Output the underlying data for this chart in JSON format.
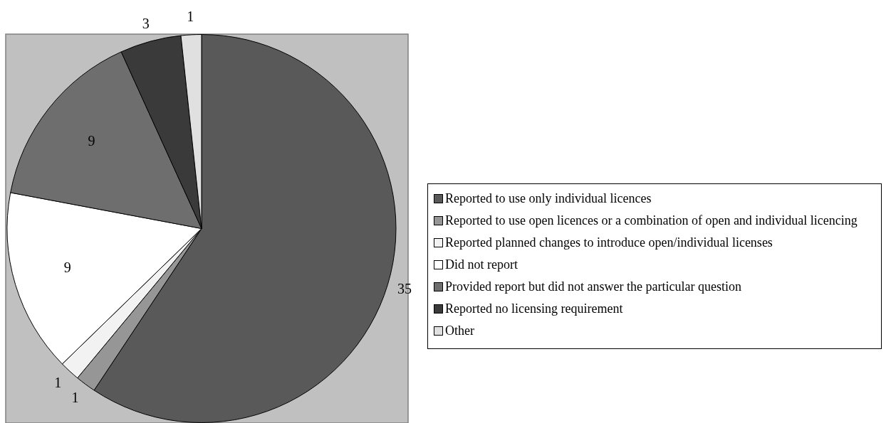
{
  "chart_data": {
    "type": "pie",
    "categories": [
      "Reported to use only individual licences",
      "Reported to use open licences or a combination of open and individual licencing",
      "Reported planned changes to introduce open/individual licenses",
      "Did not report",
      "Provided report but did not answer the particular question",
      "Reported no licensing requirement",
      "Other"
    ],
    "values": [
      35,
      1,
      1,
      9,
      9,
      3,
      1
    ],
    "colors": [
      "#595959",
      "#969696",
      "#f2f2f2",
      "#ffffff",
      "#6e6e6e",
      "#3a3a3a",
      "#e0e0e0"
    ],
    "data_labels": true,
    "legend": "right"
  }
}
